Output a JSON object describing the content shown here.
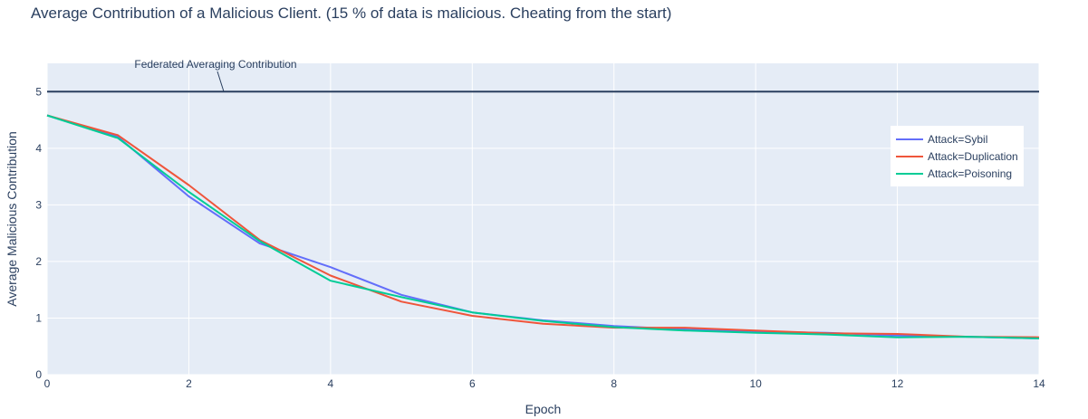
{
  "chart_data": {
    "type": "line",
    "title": "Average Contribution of a Malicious Client. (15 % of data is malicious. Cheating from the start)",
    "xlabel": "Epoch",
    "ylabel": "Average Malicious Contribution",
    "xlim": [
      0,
      14
    ],
    "ylim": [
      0,
      5.5
    ],
    "x_ticks": [
      0,
      2,
      4,
      6,
      8,
      10,
      12,
      14
    ],
    "y_ticks": [
      0,
      1,
      2,
      3,
      4,
      5
    ],
    "grid": true,
    "legend_position": "top-right",
    "x": [
      0,
      1,
      2,
      3,
      4,
      5,
      6,
      7,
      8,
      9,
      10,
      11,
      12,
      13,
      14
    ],
    "series": [
      {
        "name": "Attack=Sybil",
        "color": "#636efa",
        "values": [
          4.58,
          4.2,
          3.15,
          2.32,
          1.9,
          1.41,
          1.1,
          0.96,
          0.86,
          0.8,
          0.76,
          0.74,
          0.69,
          0.67,
          0.64
        ]
      },
      {
        "name": "Attack=Duplication",
        "color": "#ef553b",
        "values": [
          4.58,
          4.23,
          3.35,
          2.38,
          1.75,
          1.29,
          1.04,
          0.9,
          0.83,
          0.83,
          0.78,
          0.73,
          0.72,
          0.67,
          0.66
        ]
      },
      {
        "name": "Attack=Poisoning",
        "color": "#00cc96",
        "values": [
          4.58,
          4.18,
          3.23,
          2.36,
          1.66,
          1.37,
          1.1,
          0.95,
          0.84,
          0.78,
          0.74,
          0.71,
          0.66,
          0.67,
          0.64
        ]
      }
    ],
    "reference_line": {
      "y": 5,
      "color": "#2a3f5f",
      "label": "Federated Averaging Contribution"
    }
  }
}
